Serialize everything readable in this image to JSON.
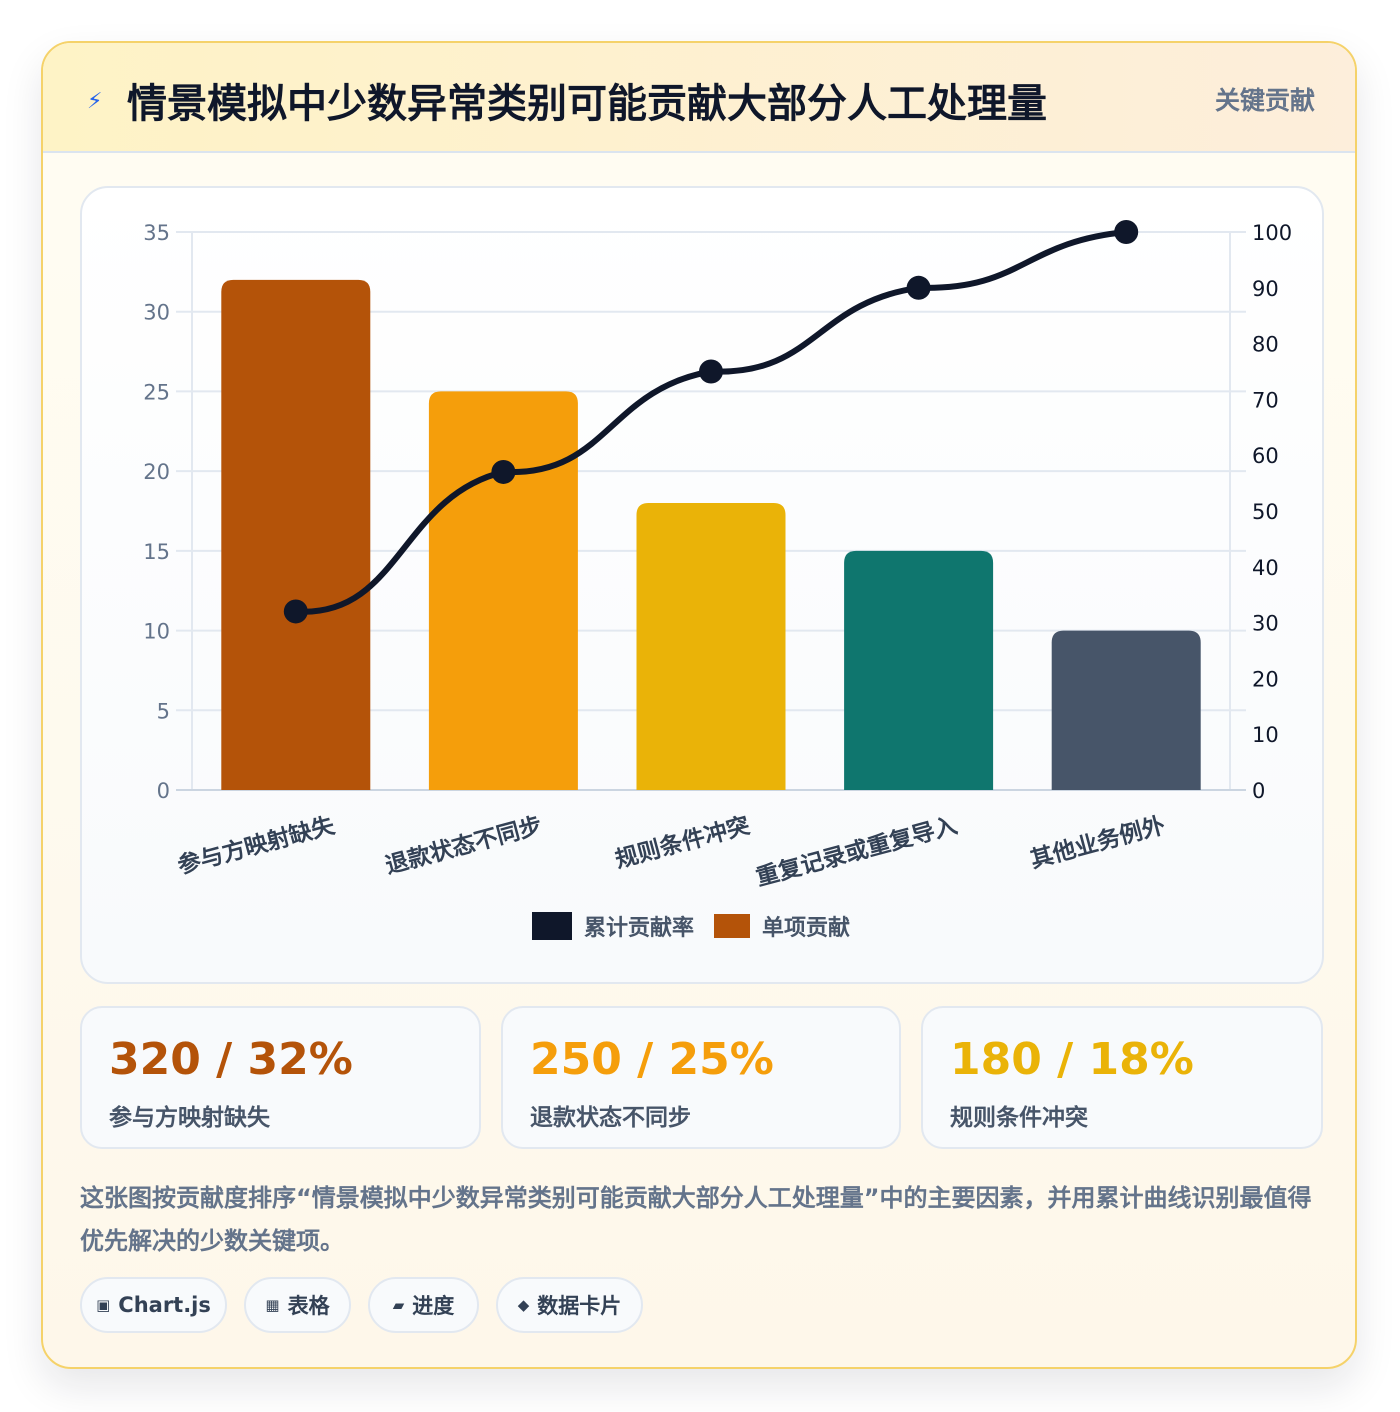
{
  "header": {
    "title": "情景模拟中少数异常类别可能贡献大部分人工处理量",
    "badge": "关键贡献",
    "icon": "lightning-icon"
  },
  "chart_data": {
    "type": "bar",
    "categories": [
      "参与方映射缺失",
      "退款状态不同步",
      "规则条件冲突",
      "重复记录或重复导入",
      "其他业务例外"
    ],
    "series": [
      {
        "name": "单项贡献",
        "type": "bar",
        "axis": "left",
        "values": [
          32,
          25,
          18,
          15,
          10
        ],
        "colors": [
          "#b45309",
          "#f59e0b",
          "#eab308",
          "#0f766e",
          "#475569"
        ]
      },
      {
        "name": "累计贡献率",
        "type": "line",
        "axis": "right",
        "values": [
          32,
          57,
          75,
          90,
          100
        ],
        "color": "#0f172a"
      }
    ],
    "y_left": {
      "min": 0,
      "max": 35,
      "ticks": [
        0,
        5,
        10,
        15,
        20,
        25,
        30,
        35
      ]
    },
    "y_right": {
      "min": 0,
      "max": 100,
      "ticks": [
        0,
        10,
        20,
        30,
        40,
        50,
        60,
        70,
        80,
        90,
        100
      ]
    },
    "legend_position": "bottom",
    "grid": true
  },
  "legend": [
    {
      "label": "累计贡献率",
      "color": "#0f172a"
    },
    {
      "label": "单项贡献",
      "color": "#b45309"
    }
  ],
  "stats": [
    {
      "value": "320 / 32%",
      "label": "参与方映射缺失",
      "color": "#b45309"
    },
    {
      "value": "250 / 25%",
      "label": "退款状态不同步",
      "color": "#f59e0b"
    },
    {
      "value": "180 / 18%",
      "label": "规则条件冲突",
      "color": "#eab308"
    }
  ],
  "description": "这张图按贡献度排序“情景模拟中少数异常类别可能贡献大部分人工处理量”中的主要因素，并用累计曲线识别最值得优先解决的少数关键项。",
  "chips": [
    {
      "icon": "▣",
      "label": "Chart.js"
    },
    {
      "icon": "▦",
      "label": "表格"
    },
    {
      "icon": "▰",
      "label": "进度"
    },
    {
      "icon": "◆",
      "label": "数据卡片"
    }
  ]
}
